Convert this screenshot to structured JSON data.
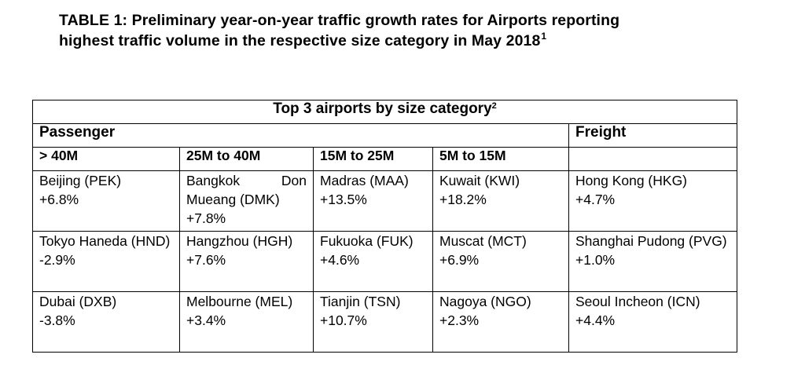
{
  "title": {
    "line1": "TABLE 1:  Preliminary year-on-year traffic growth rates for Airports reporting",
    "line2": "highest traffic volume in the respective size category in May 2018",
    "footnote_mark": "1"
  },
  "table": {
    "header": "Top 3 airports by size category",
    "header_footnote": "2",
    "passenger_label": "Passenger",
    "freight_label": "Freight",
    "sizes": [
      "> 40M",
      "25M to 40M",
      "15M to 25M",
      "5M to 15M",
      ""
    ],
    "rows": [
      [
        {
          "name": "Beijing    (PEK)",
          "value": "+6.8%"
        },
        {
          "name": "Bangkok  Don Mueang (DMK)",
          "value": "+7.8%"
        },
        {
          "name": "Madras (MAA)",
          "value": "+13.5%"
        },
        {
          "name": "Kuwait    (KWI)",
          "value": "+18.2%"
        },
        {
          "name": "Hong Kong (HKG)",
          "value": "+4.7%"
        }
      ],
      [
        {
          "name": "Tokyo  Haneda (HND)",
          "value": "-2.9%"
        },
        {
          "name": "Hangzhou (HGH)",
          "value": "+7.6%"
        },
        {
          "name": "Fukuoka (FUK)",
          "value": "+4.6%"
        },
        {
          "name": "Muscat (MCT)",
          "value": "+6.9%"
        },
        {
          "name": "Shanghai  Pudong (PVG)",
          "value": "+1.0%"
        }
      ],
      [
        {
          "name": "Dubai      (DXB)",
          "value": "-3.8%"
        },
        {
          "name": "Melbourne (MEL)",
          "value": "+3.4%"
        },
        {
          "name": "Tianjin (TSN)",
          "value": "+10.7%"
        },
        {
          "name": "Nagoya (NGO)",
          "value": "+2.3%"
        },
        {
          "name": "Seoul          Incheon (ICN)",
          "value": "+4.4%"
        }
      ]
    ]
  }
}
